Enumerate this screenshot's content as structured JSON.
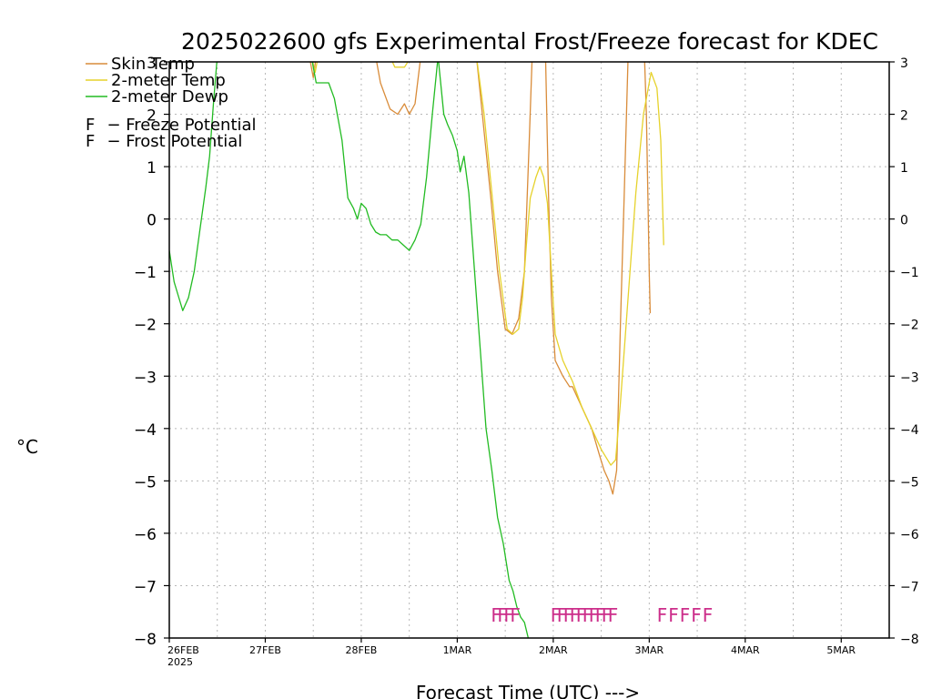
{
  "chart_data": {
    "type": "line",
    "title": "2025022600 gfs Experimental Frost/Freeze forecast for KDEC",
    "ylabel": "°C",
    "xlabel": "Forecast Time (UTC) --->",
    "ylim": [
      -8,
      3
    ],
    "xlim": [
      0,
      7.5
    ],
    "yticks": [
      -8,
      -7,
      -6,
      -5,
      -4,
      -3,
      -2,
      -1,
      0,
      1,
      2,
      3
    ],
    "xticks": [
      {
        "x": 0,
        "label": "26FEB",
        "sublabel": "2025"
      },
      {
        "x": 1,
        "label": "27FEB"
      },
      {
        "x": 2,
        "label": "28FEB"
      },
      {
        "x": 3,
        "label": "1MAR"
      },
      {
        "x": 4,
        "label": "2MAR"
      },
      {
        "x": 5,
        "label": "3MAR"
      },
      {
        "x": 6,
        "label": "4MAR"
      },
      {
        "x": 7,
        "label": "5MAR"
      }
    ],
    "grid": true,
    "legend_position": "top-left",
    "series": [
      {
        "name": "Skin Temp",
        "color": "#d98c3a",
        "points": [
          [
            1.47,
            3.0
          ],
          [
            1.5,
            2.7
          ],
          [
            1.53,
            3.1
          ],
          [
            2.15,
            3.1
          ],
          [
            2.2,
            2.6
          ],
          [
            2.3,
            2.1
          ],
          [
            2.38,
            2.0
          ],
          [
            2.45,
            2.2
          ],
          [
            2.5,
            2.0
          ],
          [
            2.56,
            2.2
          ],
          [
            2.62,
            3.1
          ],
          [
            3.2,
            3.1
          ],
          [
            3.25,
            2.2
          ],
          [
            3.35,
            0.4
          ],
          [
            3.42,
            -1.0
          ],
          [
            3.5,
            -2.1
          ],
          [
            3.57,
            -2.2
          ],
          [
            3.64,
            -1.9
          ],
          [
            3.7,
            -1.0
          ],
          [
            3.75,
            1.5
          ],
          [
            3.78,
            3.1
          ],
          [
            3.92,
            3.1
          ],
          [
            3.95,
            0.5
          ],
          [
            3.98,
            -1.5
          ],
          [
            4.02,
            -2.7
          ],
          [
            4.1,
            -3.0
          ],
          [
            4.17,
            -3.2
          ],
          [
            4.2,
            -3.2
          ],
          [
            4.3,
            -3.6
          ],
          [
            4.4,
            -4.0
          ],
          [
            4.48,
            -4.5
          ],
          [
            4.53,
            -4.8
          ],
          [
            4.58,
            -5.0
          ],
          [
            4.62,
            -5.25
          ],
          [
            4.66,
            -4.8
          ],
          [
            4.7,
            -2.0
          ],
          [
            4.74,
            0.5
          ],
          [
            4.78,
            3.1
          ],
          [
            4.95,
            3.1
          ],
          [
            4.97,
            2.0
          ],
          [
            4.99,
            0.0
          ],
          [
            5.0,
            -1.0
          ],
          [
            5.01,
            -1.8
          ]
        ]
      },
      {
        "name": "2-meter Temp",
        "color": "#e6d22c",
        "points": [
          [
            1.48,
            3.1
          ],
          [
            1.52,
            2.8
          ],
          [
            1.55,
            3.1
          ],
          [
            2.3,
            3.1
          ],
          [
            2.35,
            2.9
          ],
          [
            2.45,
            2.9
          ],
          [
            2.52,
            3.1
          ],
          [
            3.2,
            3.1
          ],
          [
            3.28,
            2.0
          ],
          [
            3.36,
            0.5
          ],
          [
            3.44,
            -1.0
          ],
          [
            3.52,
            -2.1
          ],
          [
            3.58,
            -2.2
          ],
          [
            3.64,
            -2.1
          ],
          [
            3.68,
            -1.5
          ],
          [
            3.72,
            -0.5
          ],
          [
            3.76,
            0.4
          ],
          [
            3.82,
            0.8
          ],
          [
            3.86,
            1.0
          ],
          [
            3.9,
            0.8
          ],
          [
            3.94,
            0.3
          ],
          [
            3.98,
            -1.0
          ],
          [
            4.02,
            -2.2
          ],
          [
            4.1,
            -2.7
          ],
          [
            4.2,
            -3.1
          ],
          [
            4.3,
            -3.6
          ],
          [
            4.4,
            -4.0
          ],
          [
            4.5,
            -4.4
          ],
          [
            4.6,
            -4.7
          ],
          [
            4.65,
            -4.6
          ],
          [
            4.7,
            -3.5
          ],
          [
            4.78,
            -1.5
          ],
          [
            4.86,
            0.5
          ],
          [
            4.94,
            2.0
          ],
          [
            5.02,
            2.8
          ],
          [
            5.08,
            2.5
          ],
          [
            5.12,
            1.5
          ],
          [
            5.15,
            -0.5
          ]
        ]
      },
      {
        "name": "2-meter Dewp",
        "color": "#22bb22",
        "points": [
          [
            0.0,
            -0.6
          ],
          [
            0.05,
            -1.2
          ],
          [
            0.1,
            -1.5
          ],
          [
            0.14,
            -1.75
          ],
          [
            0.2,
            -1.5
          ],
          [
            0.26,
            -1.0
          ],
          [
            0.32,
            -0.2
          ],
          [
            0.38,
            0.6
          ],
          [
            0.42,
            1.2
          ],
          [
            0.46,
            2.2
          ],
          [
            0.5,
            3.1
          ],
          [
            1.48,
            3.1
          ],
          [
            1.53,
            2.6
          ],
          [
            1.6,
            2.6
          ],
          [
            1.66,
            2.6
          ],
          [
            1.72,
            2.3
          ],
          [
            1.8,
            1.5
          ],
          [
            1.86,
            0.4
          ],
          [
            1.92,
            0.2
          ],
          [
            1.96,
            0.0
          ],
          [
            2.0,
            0.3
          ],
          [
            2.05,
            0.2
          ],
          [
            2.1,
            -0.1
          ],
          [
            2.15,
            -0.25
          ],
          [
            2.2,
            -0.3
          ],
          [
            2.26,
            -0.3
          ],
          [
            2.32,
            -0.4
          ],
          [
            2.38,
            -0.4
          ],
          [
            2.44,
            -0.5
          ],
          [
            2.5,
            -0.6
          ],
          [
            2.56,
            -0.4
          ],
          [
            2.62,
            -0.1
          ],
          [
            2.68,
            0.8
          ],
          [
            2.74,
            2.0
          ],
          [
            2.8,
            3.1
          ],
          [
            2.86,
            2.0
          ],
          [
            2.9,
            1.8
          ],
          [
            2.95,
            1.6
          ],
          [
            3.0,
            1.3
          ],
          [
            3.03,
            0.9
          ],
          [
            3.07,
            1.2
          ],
          [
            3.12,
            0.5
          ],
          [
            3.18,
            -1.0
          ],
          [
            3.24,
            -2.5
          ],
          [
            3.3,
            -4.0
          ],
          [
            3.36,
            -4.8
          ],
          [
            3.42,
            -5.7
          ],
          [
            3.48,
            -6.2
          ],
          [
            3.54,
            -6.9
          ],
          [
            3.58,
            -7.1
          ],
          [
            3.62,
            -7.4
          ],
          [
            3.66,
            -7.6
          ],
          [
            3.7,
            -7.7
          ],
          [
            3.74,
            -8.0
          ]
        ]
      }
    ],
    "markers": [
      {
        "text": "FFFF",
        "x": 3.35,
        "y": -7.55,
        "style": "overstrike",
        "color": "#cc2e8a",
        "group": "freeze"
      },
      {
        "text": "FFFFFFFFFF",
        "x": 3.97,
        "y": -7.55,
        "style": "overstrike",
        "color": "#cc2e8a",
        "group": "freeze"
      },
      {
        "text": "FFFFF",
        "x": 5.08,
        "y": -7.55,
        "style": "normal",
        "color": "#cc2e8a",
        "group": "freeze"
      }
    ],
    "legend": {
      "lines": [
        {
          "label": "Skin Temp",
          "color": "#d98c3a"
        },
        {
          "label": "2-meter Temp",
          "color": "#e6d22c"
        },
        {
          "label": "2-meter Dewp",
          "color": "#22bb22"
        }
      ],
      "codes": [
        {
          "code": "F",
          "label": "  - Freeze Potential",
          "color": "#cc2e8a"
        },
        {
          "code": "F",
          "label": "  - Frost Potential",
          "color": "#4a5ad6"
        }
      ]
    }
  }
}
